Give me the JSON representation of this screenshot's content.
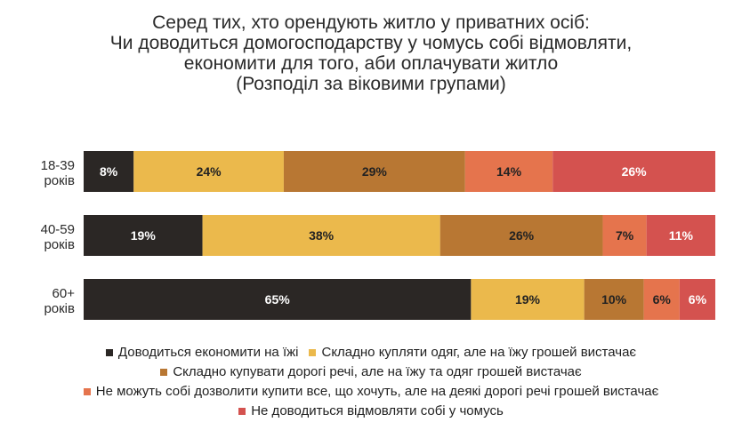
{
  "chart_data": {
    "type": "bar",
    "orientation": "horizontal",
    "stacked": true,
    "title": [
      "Серед тих, хто орендують житло у приватних осіб:",
      "Чи доводиться домогосподарству у чомусь собі відмовляти,",
      "економити для того, аби оплачувати житло",
      "(Розподіл за віковими групами)"
    ],
    "categories": [
      [
        "18-39",
        "років"
      ],
      [
        "40-59",
        "років"
      ],
      [
        "60+",
        "років"
      ]
    ],
    "series": [
      {
        "name": "Доводиться економити на їжі",
        "color": "#2b2725",
        "text_color": "#ffffff",
        "values": [
          8,
          19,
          65
        ]
      },
      {
        "name": "Складно купляти одяг, але на їжу грошей вистачає",
        "color": "#ebb94c",
        "text_color": "#222222",
        "values": [
          24,
          38,
          19
        ]
      },
      {
        "name": "Складно купувати дорогі речі, але на їжу та одяг грошей вистачає",
        "color": "#b87733",
        "text_color": "#222222",
        "values": [
          29,
          26,
          10
        ]
      },
      {
        "name": "Не можуть собі дозволити купити все, що хочуть, але на деякі дорогі речі грошей вистачає",
        "color": "#e5744d",
        "text_color": "#222222",
        "values": [
          14,
          7,
          6
        ]
      },
      {
        "name": "Не доводиться відмовляти собі у чомусь",
        "color": "#d4524f",
        "text_color": "#ffffff",
        "values": [
          26,
          11,
          6
        ]
      }
    ],
    "value_suffix": "%",
    "legend_position": "bottom",
    "grid": false
  }
}
